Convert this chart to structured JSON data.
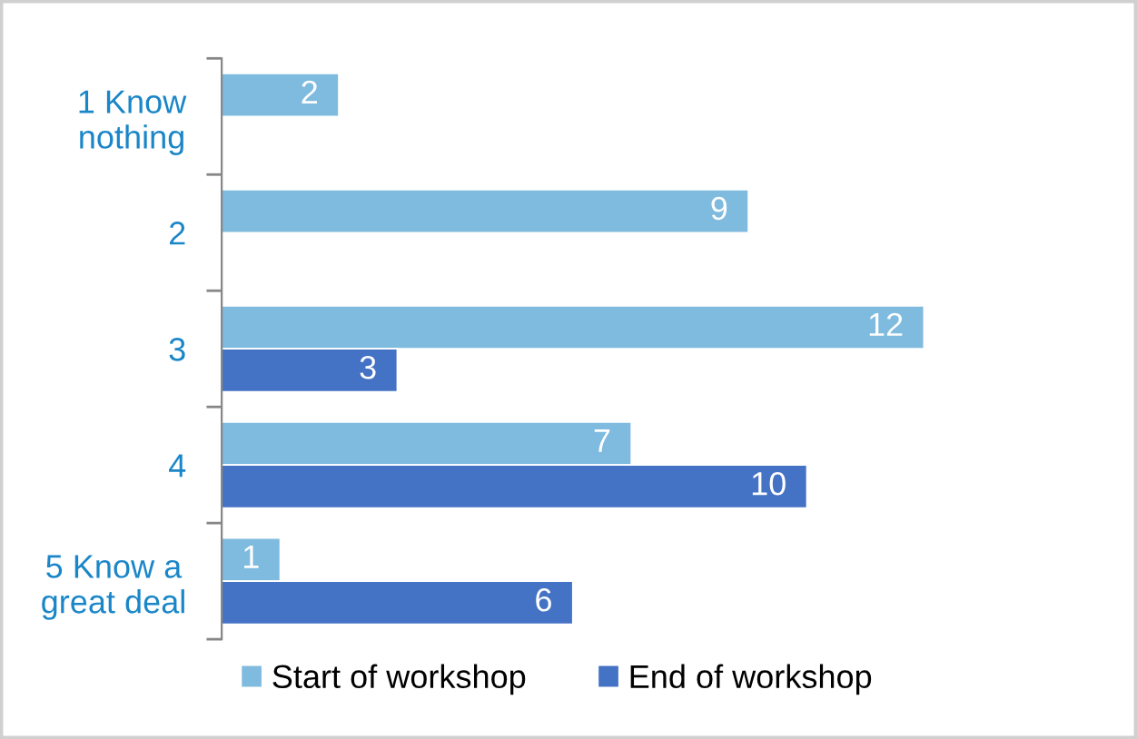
{
  "chart_data": {
    "type": "bar",
    "orientation": "horizontal",
    "categories": [
      "1 Know\nnothing",
      "2",
      "3",
      "4",
      "5 Know a\ngreat deal"
    ],
    "series": [
      {
        "name": "Start of workshop",
        "color": "#7fbadf",
        "values": [
          2,
          9,
          12,
          7,
          1
        ]
      },
      {
        "name": "End of workshop",
        "color": "#4472c4",
        "values": [
          null,
          null,
          3,
          10,
          6
        ]
      }
    ],
    "data_labels": true,
    "legend": "bottom",
    "tick_labels": "y"
  }
}
